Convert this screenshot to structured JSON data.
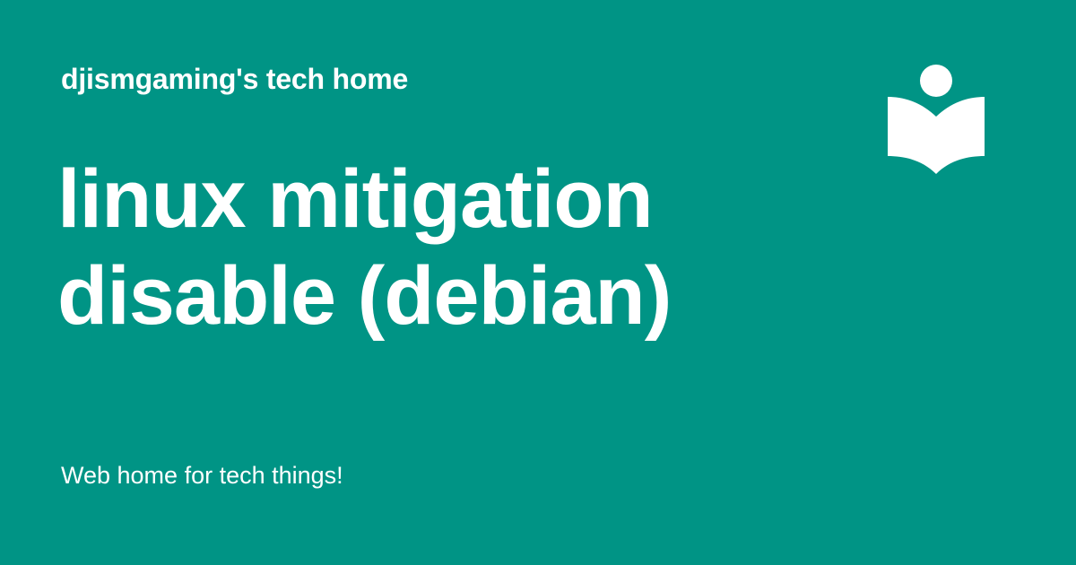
{
  "site": {
    "name": "djismgaming's tech home",
    "tagline": "Web home for tech things!"
  },
  "post": {
    "title": "linux mitigation disable (debian)"
  },
  "logo": {
    "icon": "reader-book-icon"
  },
  "colors": {
    "background": "#009485",
    "foreground": "#ffffff"
  }
}
